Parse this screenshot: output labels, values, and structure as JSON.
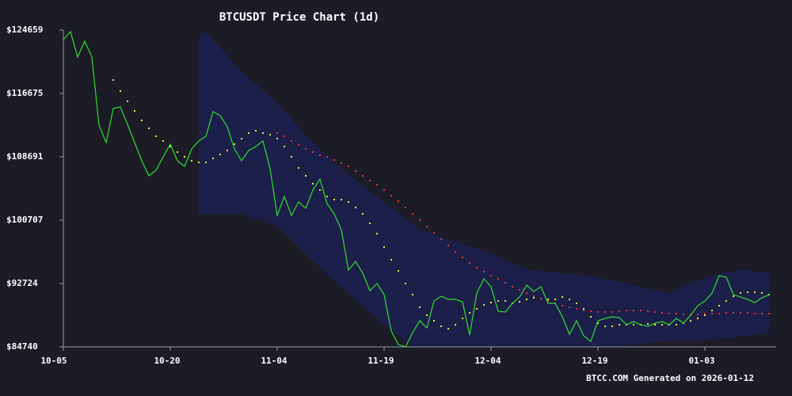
{
  "chart_data": {
    "type": "line",
    "title": "BTCUSDT Price Chart (1d)",
    "annotation": "BTCC.COM Generated on 2026-01-12",
    "x": [
      0,
      1,
      2,
      3,
      4,
      5,
      6,
      7,
      8,
      9,
      10,
      11,
      12,
      13,
      14,
      15,
      16,
      17,
      18,
      19,
      20,
      21,
      22,
      23,
      24,
      25,
      26,
      27,
      28,
      29,
      30,
      31,
      32,
      33,
      34,
      35,
      36,
      37,
      38,
      39,
      40,
      41,
      42,
      43,
      44,
      45,
      46,
      47,
      48,
      49,
      50,
      51,
      52,
      53,
      54,
      55,
      56,
      57,
      58,
      59,
      60,
      61,
      62,
      63,
      64,
      65,
      66,
      67,
      68,
      69,
      70,
      71,
      72,
      73,
      74,
      75,
      76,
      77,
      78,
      79,
      80,
      81,
      82,
      83,
      84,
      85,
      86,
      87,
      88,
      89,
      90,
      91,
      92,
      93,
      94,
      95,
      96,
      97,
      98,
      99
    ],
    "xlim": [
      0,
      100
    ],
    "xticks": [
      {
        "value": 0,
        "label": "10-05"
      },
      {
        "value": 15,
        "label": "10-20"
      },
      {
        "value": 30,
        "label": "11-04"
      },
      {
        "value": 45,
        "label": "11-19"
      },
      {
        "value": 60,
        "label": "12-04"
      },
      {
        "value": 75,
        "label": "12-19"
      },
      {
        "value": 90,
        "label": "01-03"
      }
    ],
    "ylim": [
      84740,
      124659
    ],
    "yticks": [
      {
        "value": 84740,
        "label": "$84740"
      },
      {
        "value": 92724,
        "label": "$92724"
      },
      {
        "value": 100707,
        "label": "$100707"
      },
      {
        "value": 108691,
        "label": "$108691"
      },
      {
        "value": 116675,
        "label": "$116675"
      },
      {
        "value": 124659,
        "label": "$124659"
      }
    ],
    "band": {
      "color": "#1c2366",
      "x": [
        19,
        20,
        25,
        30,
        35,
        40,
        45,
        50,
        55,
        60,
        65,
        70,
        75,
        80,
        85,
        90,
        95,
        99
      ],
      "upper": [
        123959,
        124458,
        119468,
        115476,
        110486,
        106494,
        103001,
        99508,
        98011,
        96514,
        94518,
        94019,
        93520,
        92522,
        91524,
        93520,
        94518,
        94019
      ],
      "lower": [
        101504,
        101504,
        101504,
        100007,
        95516,
        91524,
        87532,
        84039,
        82542,
        82542,
        83041,
        83540,
        84538,
        85037,
        85536,
        85536,
        86035,
        86534
      ]
    },
    "series": [
      {
        "style": "line",
        "color": "#33dd33",
        "values": [
          123460,
          124458,
          121264,
          123260,
          121264,
          112682,
          110486,
          114777,
          114977,
          112781,
          110486,
          108191,
          106294,
          106993,
          108690,
          110286,
          108191,
          107492,
          109688,
          110686,
          111284,
          114378,
          113879,
          112482,
          109688,
          108191,
          109488,
          109987,
          110686,
          107193,
          101304,
          103700,
          101304,
          103001,
          102203,
          104498,
          105895,
          102801,
          101504,
          99508,
          94418,
          95516,
          94019,
          91823,
          92722,
          91324,
          86734,
          85037,
          84738,
          86534,
          88031,
          87133,
          90526,
          91125,
          90726,
          90726,
          90426,
          86235,
          91524,
          93320,
          92322,
          89229,
          89129,
          90227,
          91025,
          92522,
          91724,
          92322,
          90227,
          90227,
          88530,
          86334,
          88031,
          86135,
          85436,
          88031,
          88330,
          88530,
          88430,
          87532,
          87931,
          87532,
          87332,
          87732,
          87931,
          87532,
          88330,
          87732,
          88730,
          89927,
          90526,
          91524,
          93720,
          93520,
          91324,
          91025,
          90726,
          90326,
          90925,
          91324
        ]
      },
      {
        "style": "dots",
        "color": "#ffff33",
        "values": [
          null,
          null,
          null,
          null,
          null,
          null,
          null,
          118370,
          116973,
          115676,
          114478,
          113280,
          112282,
          111284,
          110686,
          109987,
          109288,
          108690,
          108191,
          107991,
          107991,
          108490,
          108989,
          109488,
          110286,
          110985,
          111684,
          111983,
          111684,
          111484,
          110985,
          109987,
          108690,
          107292,
          106294,
          105296,
          104498,
          103700,
          103300,
          103300,
          103001,
          102302,
          101504,
          100306,
          99009,
          97312,
          95716,
          94318,
          92722,
          91324,
          89728,
          88730,
          88031,
          87332,
          87033,
          87532,
          88330,
          89029,
          89528,
          90027,
          90326,
          90526,
          90526,
          90227,
          90426,
          90726,
          90925,
          90825,
          90726,
          90726,
          91025,
          90726,
          90227,
          89528,
          88530,
          87732,
          87332,
          87332,
          87532,
          87532,
          87532,
          87532,
          87632,
          87532,
          87532,
          87532,
          87532,
          87732,
          88031,
          88330,
          88730,
          89328,
          89927,
          90526,
          91125,
          91524,
          91624,
          91624,
          91524,
          91324
        ]
      },
      {
        "style": "dots",
        "color": "#ff3333",
        "values": [
          null,
          null,
          null,
          null,
          null,
          null,
          null,
          null,
          null,
          null,
          null,
          null,
          null,
          null,
          null,
          null,
          null,
          null,
          null,
          null,
          null,
          null,
          null,
          null,
          null,
          null,
          null,
          null,
          null,
          null,
          111684,
          111284,
          110686,
          110187,
          109688,
          109288,
          108889,
          108690,
          108290,
          107891,
          107492,
          106893,
          106294,
          105696,
          105197,
          104498,
          103799,
          103101,
          102302,
          101504,
          100706,
          99907,
          99109,
          98310,
          97512,
          96714,
          96015,
          95316,
          94718,
          94219,
          93720,
          93320,
          92821,
          92322,
          91923,
          91524,
          91125,
          90825,
          90526,
          90227,
          89927,
          89728,
          89528,
          89328,
          89229,
          89129,
          89129,
          89129,
          89229,
          89328,
          89328,
          89328,
          89229,
          89129,
          89029,
          88929,
          88929,
          88829,
          88829,
          88829,
          88929,
          88929,
          88929,
          89029,
          89029,
          89029,
          89029,
          88929,
          88929,
          88929
        ]
      }
    ]
  }
}
